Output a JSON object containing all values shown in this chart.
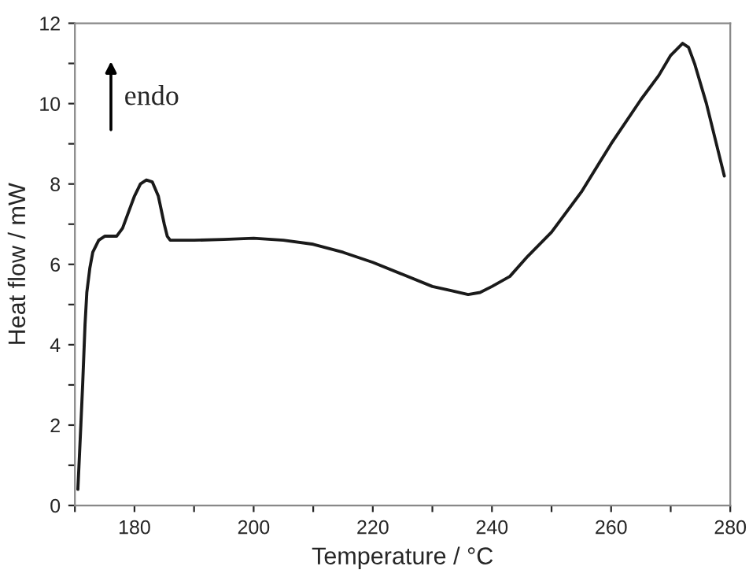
{
  "chart_data": {
    "type": "line",
    "xlabel": "Temperature / °C",
    "ylabel": "Heat flow / mW",
    "annotations": [
      "endo"
    ],
    "x": [
      170.5,
      171,
      171.3,
      171.7,
      172,
      172.5,
      173,
      174,
      175,
      176,
      177,
      178,
      179,
      180,
      181,
      182,
      183,
      184,
      185,
      185.5,
      186,
      188,
      190,
      195,
      200,
      205,
      210,
      215,
      220,
      225,
      230,
      233,
      236,
      238,
      240,
      243,
      246,
      250,
      255,
      260,
      265,
      268,
      270,
      272,
      273,
      274,
      276,
      278,
      279
    ],
    "series": [
      {
        "color": "#1a1a1a",
        "values": [
          0.4,
          2,
          3,
          4.5,
          5.3,
          5.9,
          6.3,
          6.6,
          6.7,
          6.7,
          6.7,
          6.9,
          7.3,
          7.7,
          8.0,
          8.1,
          8.05,
          7.7,
          7.0,
          6.7,
          6.6,
          6.6,
          6.6,
          6.62,
          6.65,
          6.6,
          6.5,
          6.3,
          6.05,
          5.75,
          5.45,
          5.35,
          5.25,
          5.3,
          5.45,
          5.7,
          6.2,
          6.8,
          7.8,
          9.0,
          10.1,
          10.7,
          11.2,
          11.5,
          11.4,
          11.0,
          10.0,
          8.8,
          8.2
        ]
      }
    ],
    "xlim": [
      170,
      280
    ],
    "ylim": [
      0,
      12
    ],
    "xticks": [
      {
        "value": 170,
        "label": null
      },
      180,
      {
        "value": 190,
        "label": null
      },
      200,
      {
        "value": 210,
        "label": null
      },
      220,
      {
        "value": 230,
        "label": null
      },
      240,
      {
        "value": 250,
        "label": null
      },
      260,
      {
        "value": 270,
        "label": null
      },
      280
    ],
    "yticks": [
      0,
      {
        "value": 1,
        "label": null
      },
      2,
      {
        "value": 3,
        "label": null
      },
      4,
      {
        "value": 5,
        "label": null
      },
      6,
      {
        "value": 7,
        "label": null
      },
      8,
      {
        "value": 9,
        "label": null
      },
      10,
      {
        "value": 11,
        "label": null
      },
      12
    ],
    "grid": false,
    "legend": false,
    "marker": "none",
    "line_style": "solid"
  }
}
